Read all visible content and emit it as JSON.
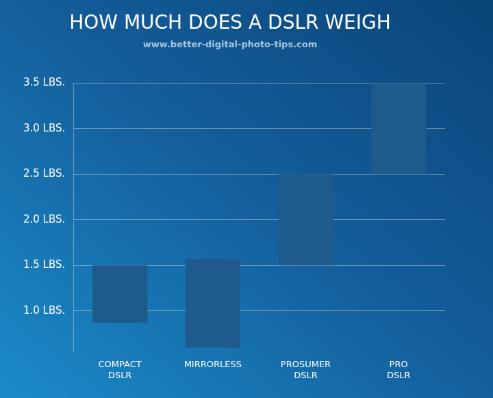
{
  "chart_data": {
    "type": "bar",
    "title": "HOW MUCH DOES A DSLR WEIGH",
    "subtitle": "www.better-digital-photo-tips.com",
    "categories": [
      "COMPACT DSLR",
      "MIRRORLESS",
      "PROSUMER DSLR",
      "PRO DSLR"
    ],
    "values": [
      [
        0.87,
        1.5
      ],
      [
        0.6,
        1.57
      ],
      [
        1.5,
        2.5
      ],
      [
        2.5,
        3.5
      ]
    ],
    "color": "#1f5a8c",
    "ylim": [
      0.55,
      3.5
    ],
    "yticks": [
      {
        "value": 1.0,
        "label": "1.0 LBS."
      },
      {
        "value": 1.5,
        "label": "1.5 LBS."
      },
      {
        "value": 2.0,
        "label": "2.0 LBS."
      },
      {
        "value": 2.5,
        "label": "2.5 LBS."
      },
      {
        "value": 3.0,
        "label": "3.0 LBS."
      },
      {
        "value": 3.5,
        "label": "3.5 LBS."
      }
    ],
    "grid": true
  }
}
